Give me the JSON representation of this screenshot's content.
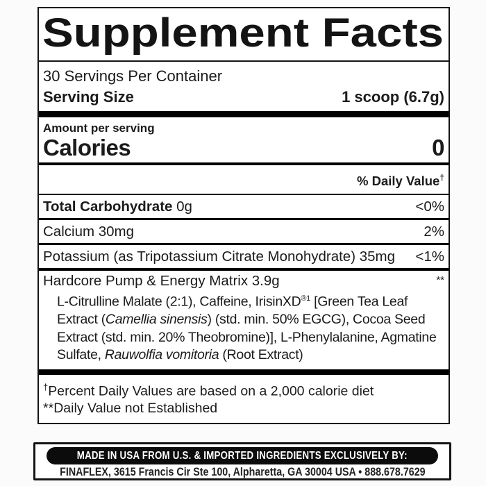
{
  "panel": {
    "title": "Supplement Facts",
    "servings_per_container": "30 Servings Per Container",
    "serving_size": {
      "label": "Serving Size",
      "value": "1 scoop (6.7g)"
    },
    "amount_per_serving_label": "Amount per serving",
    "calories": {
      "label": "Calories",
      "value": "0"
    },
    "daily_value_header": {
      "text": "% Daily Value",
      "marker": "†"
    },
    "nutrients": [
      {
        "bold": "Total Carbohydrate",
        "rest": " 0g",
        "daily_value": "<0%"
      },
      {
        "bold": "",
        "rest": "Calcium 30mg",
        "daily_value": "2%"
      },
      {
        "bold": "",
        "rest": "Potassium (as Tripotassium Citrate Monohydrate) 35mg",
        "daily_value": "<1%"
      }
    ],
    "matrix": {
      "name": "Hardcore Pump & Energy Matrix 3.9g",
      "daily_value_marker": "**",
      "ingredients": {
        "part1": "L-Citrulline Malate (2:1), Caffeine, IrisinXD",
        "sup1": "®1",
        "part2": " [Green Tea Leaf Extract (",
        "italic1": "Camellia sinensis",
        "part3": ") (std. min. 50% EGCG), Cocoa Seed Extract (std. min. 20% Theobromine)], L-Phenylalanine, Agmatine Sulfate, ",
        "italic2": "Rauwolfia vomitoria",
        "part4": " (Root Extract)"
      }
    },
    "footnotes": [
      {
        "marker": "†",
        "text": "Percent Daily Values are based on a 2,000 calorie diet"
      },
      {
        "marker": "**",
        "text": "Daily Value not Established"
      }
    ]
  },
  "footer": {
    "made_in_line": "MADE IN USA FROM U.S. & IMPORTED INGREDIENTS EXCLUSIVELY BY:",
    "address_line": "FINAFLEX, 3615 Francis Cir Ste 100, Alpharetta, GA 30004 USA • 888.678.7629"
  },
  "colors": {
    "text": "#1b1b1b",
    "rule": "#000000",
    "panel_background": "#ffffff",
    "page_background": "#fbfbfb",
    "pill_background": "#0c0c0c",
    "pill_text": "#ffffff"
  }
}
